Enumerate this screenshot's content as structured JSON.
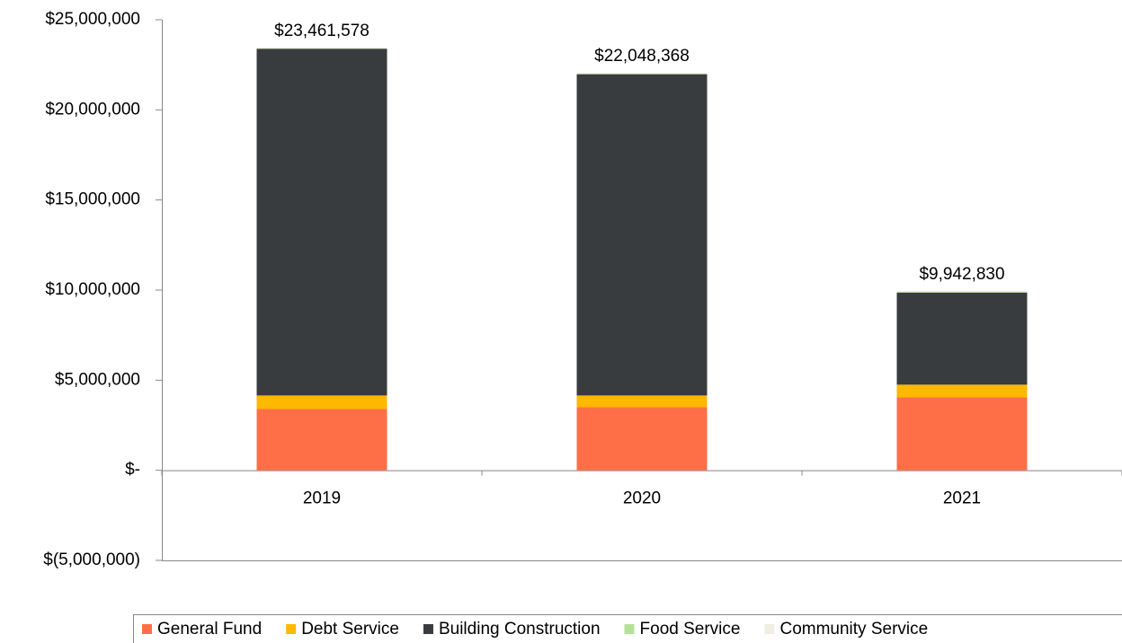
{
  "chart_data": {
    "type": "stacked_bar",
    "categories": [
      "2019",
      "2020",
      "2021"
    ],
    "series": [
      {
        "name": "General Fund",
        "color": "#ff6f47",
        "values": [
          3400000,
          3500000,
          4050000
        ]
      },
      {
        "name": "Debt Service",
        "color": "#ffb800",
        "values": [
          750000,
          650000,
          700000
        ]
      },
      {
        "name": "Building Construction",
        "color": "#393c3f",
        "values": [
          19241578,
          17828368,
          5112830
        ]
      },
      {
        "name": "Food Service",
        "color": "#b5e09a",
        "values": [
          60000,
          60000,
          70000
        ]
      },
      {
        "name": "Community Service",
        "color": "#f0eee0",
        "values": [
          10000,
          10000,
          10000
        ]
      }
    ],
    "totals": [
      23461578,
      22048368,
      9942830
    ],
    "total_labels": [
      "$23,461,578",
      "$22,048,368",
      "$9,942,830"
    ],
    "ylim": [
      -5000000,
      25000000
    ],
    "yticks": [
      {
        "value": -5000000,
        "label": "$(5,000,000)"
      },
      {
        "value": 0,
        "label": "$-"
      },
      {
        "value": 5000000,
        "label": "$5,000,000"
      },
      {
        "value": 10000000,
        "label": "$10,000,000"
      },
      {
        "value": 15000000,
        "label": "$15,000,000"
      },
      {
        "value": 20000000,
        "label": "$20,000,000"
      },
      {
        "value": 25000000,
        "label": "$25,000,000"
      }
    ],
    "grid": false,
    "legend": "bottom"
  }
}
